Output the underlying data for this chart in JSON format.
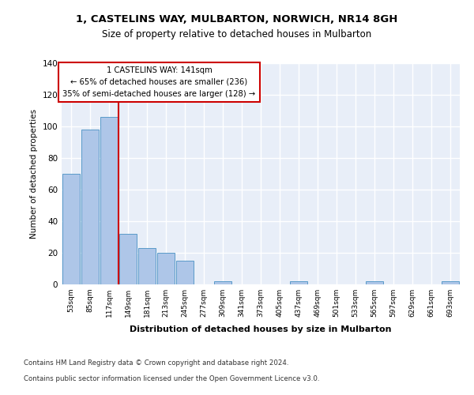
{
  "title": "1, CASTELINS WAY, MULBARTON, NORWICH, NR14 8GH",
  "subtitle": "Size of property relative to detached houses in Mulbarton",
  "xlabel": "Distribution of detached houses by size in Mulbarton",
  "ylabel": "Number of detached properties",
  "bar_color": "#aec6e8",
  "bar_edge_color": "#5a9bc9",
  "categories": [
    "53sqm",
    "85sqm",
    "117sqm",
    "149sqm",
    "181sqm",
    "213sqm",
    "245sqm",
    "277sqm",
    "309sqm",
    "341sqm",
    "373sqm",
    "405sqm",
    "437sqm",
    "469sqm",
    "501sqm",
    "533sqm",
    "565sqm",
    "597sqm",
    "629sqm",
    "661sqm",
    "693sqm"
  ],
  "values": [
    70,
    98,
    106,
    32,
    23,
    20,
    15,
    0,
    2,
    0,
    0,
    0,
    2,
    0,
    0,
    0,
    2,
    0,
    0,
    0,
    2
  ],
  "vline_x": 2.5,
  "vline_color": "#cc0000",
  "annotation_text": "1 CASTELINS WAY: 141sqm\n← 65% of detached houses are smaller (236)\n35% of semi-detached houses are larger (128) →",
  "annotation_box_color": "#ffffff",
  "annotation_box_edge": "#cc0000",
  "ylim": [
    0,
    140
  ],
  "yticks": [
    0,
    20,
    40,
    60,
    80,
    100,
    120,
    140
  ],
  "background_color": "#e8eef8",
  "grid_color": "#ffffff",
  "footer_line1": "Contains HM Land Registry data © Crown copyright and database right 2024.",
  "footer_line2": "Contains public sector information licensed under the Open Government Licence v3.0."
}
